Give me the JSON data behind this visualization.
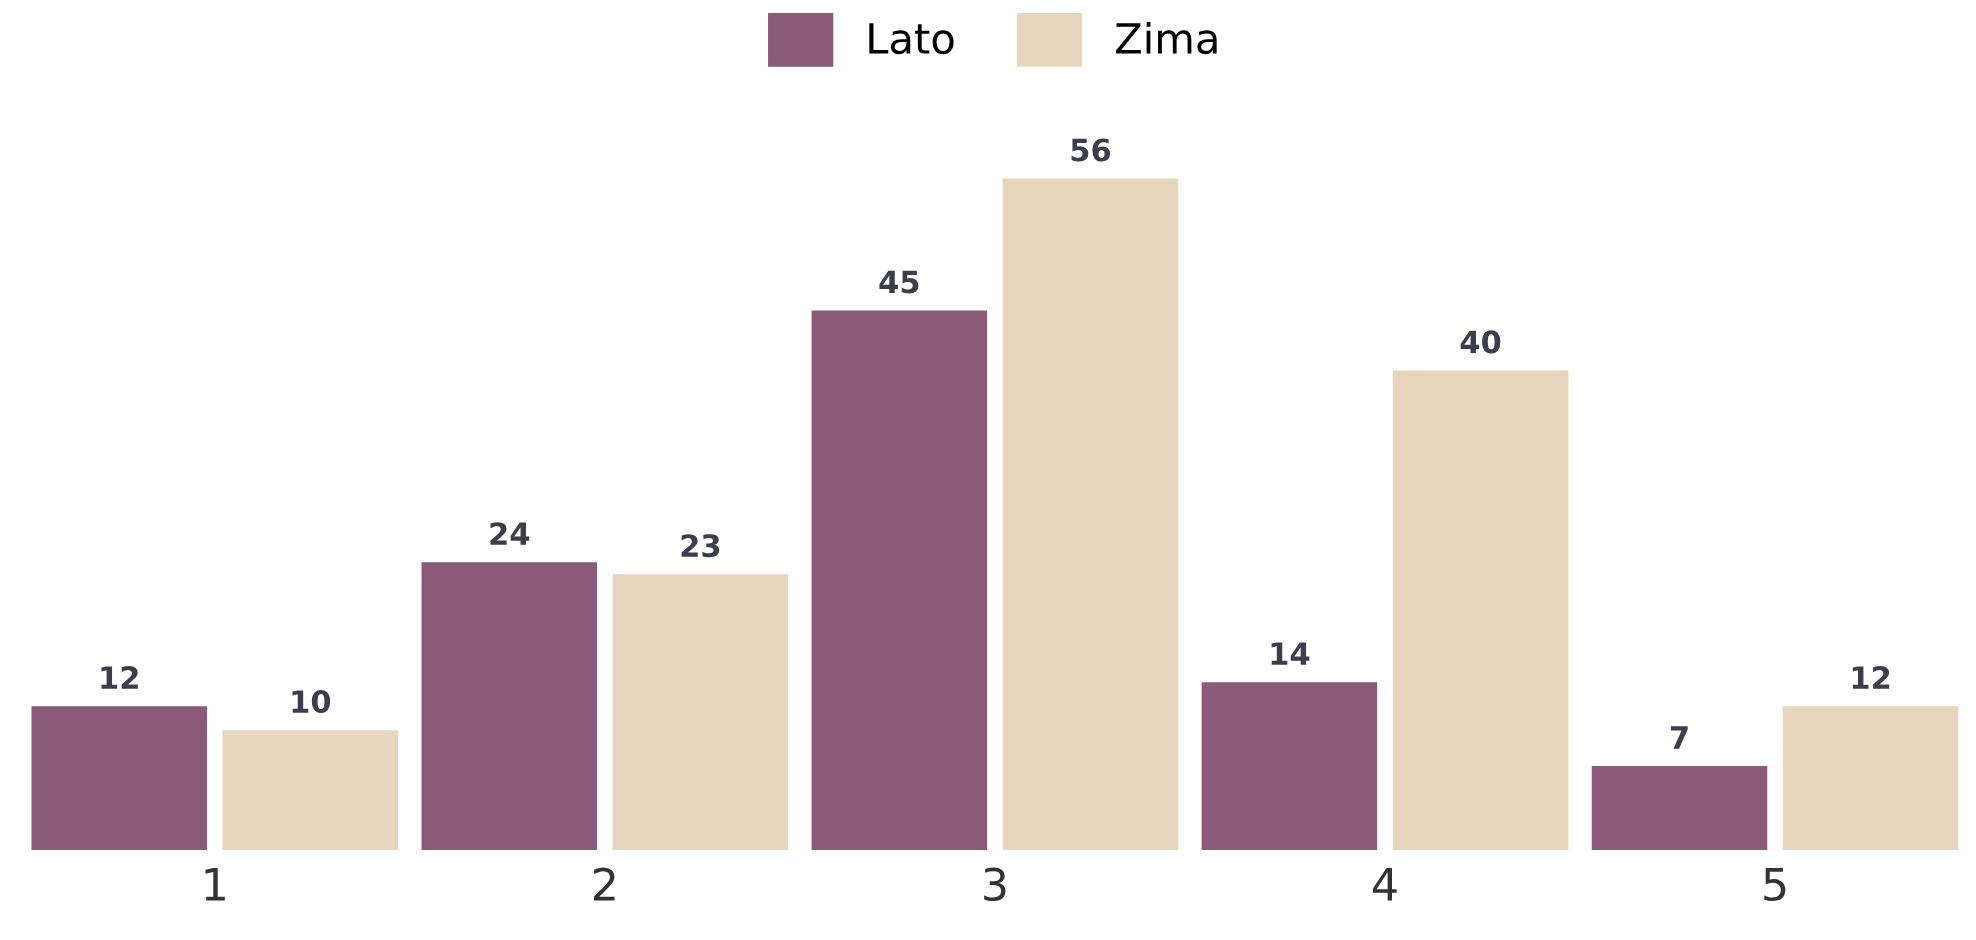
{
  "chart_data": {
    "type": "bar",
    "categories": [
      "1",
      "2",
      "3",
      "4",
      "5"
    ],
    "series": [
      {
        "name": "Lato",
        "color": "#8b5a78",
        "values": [
          12,
          24,
          45,
          14,
          7
        ]
      },
      {
        "name": "Zima",
        "color": "#e8d5bd",
        "values": [
          10,
          23,
          56,
          40,
          12
        ]
      }
    ],
    "data_labels": true,
    "legend": "top",
    "grid": false
  }
}
